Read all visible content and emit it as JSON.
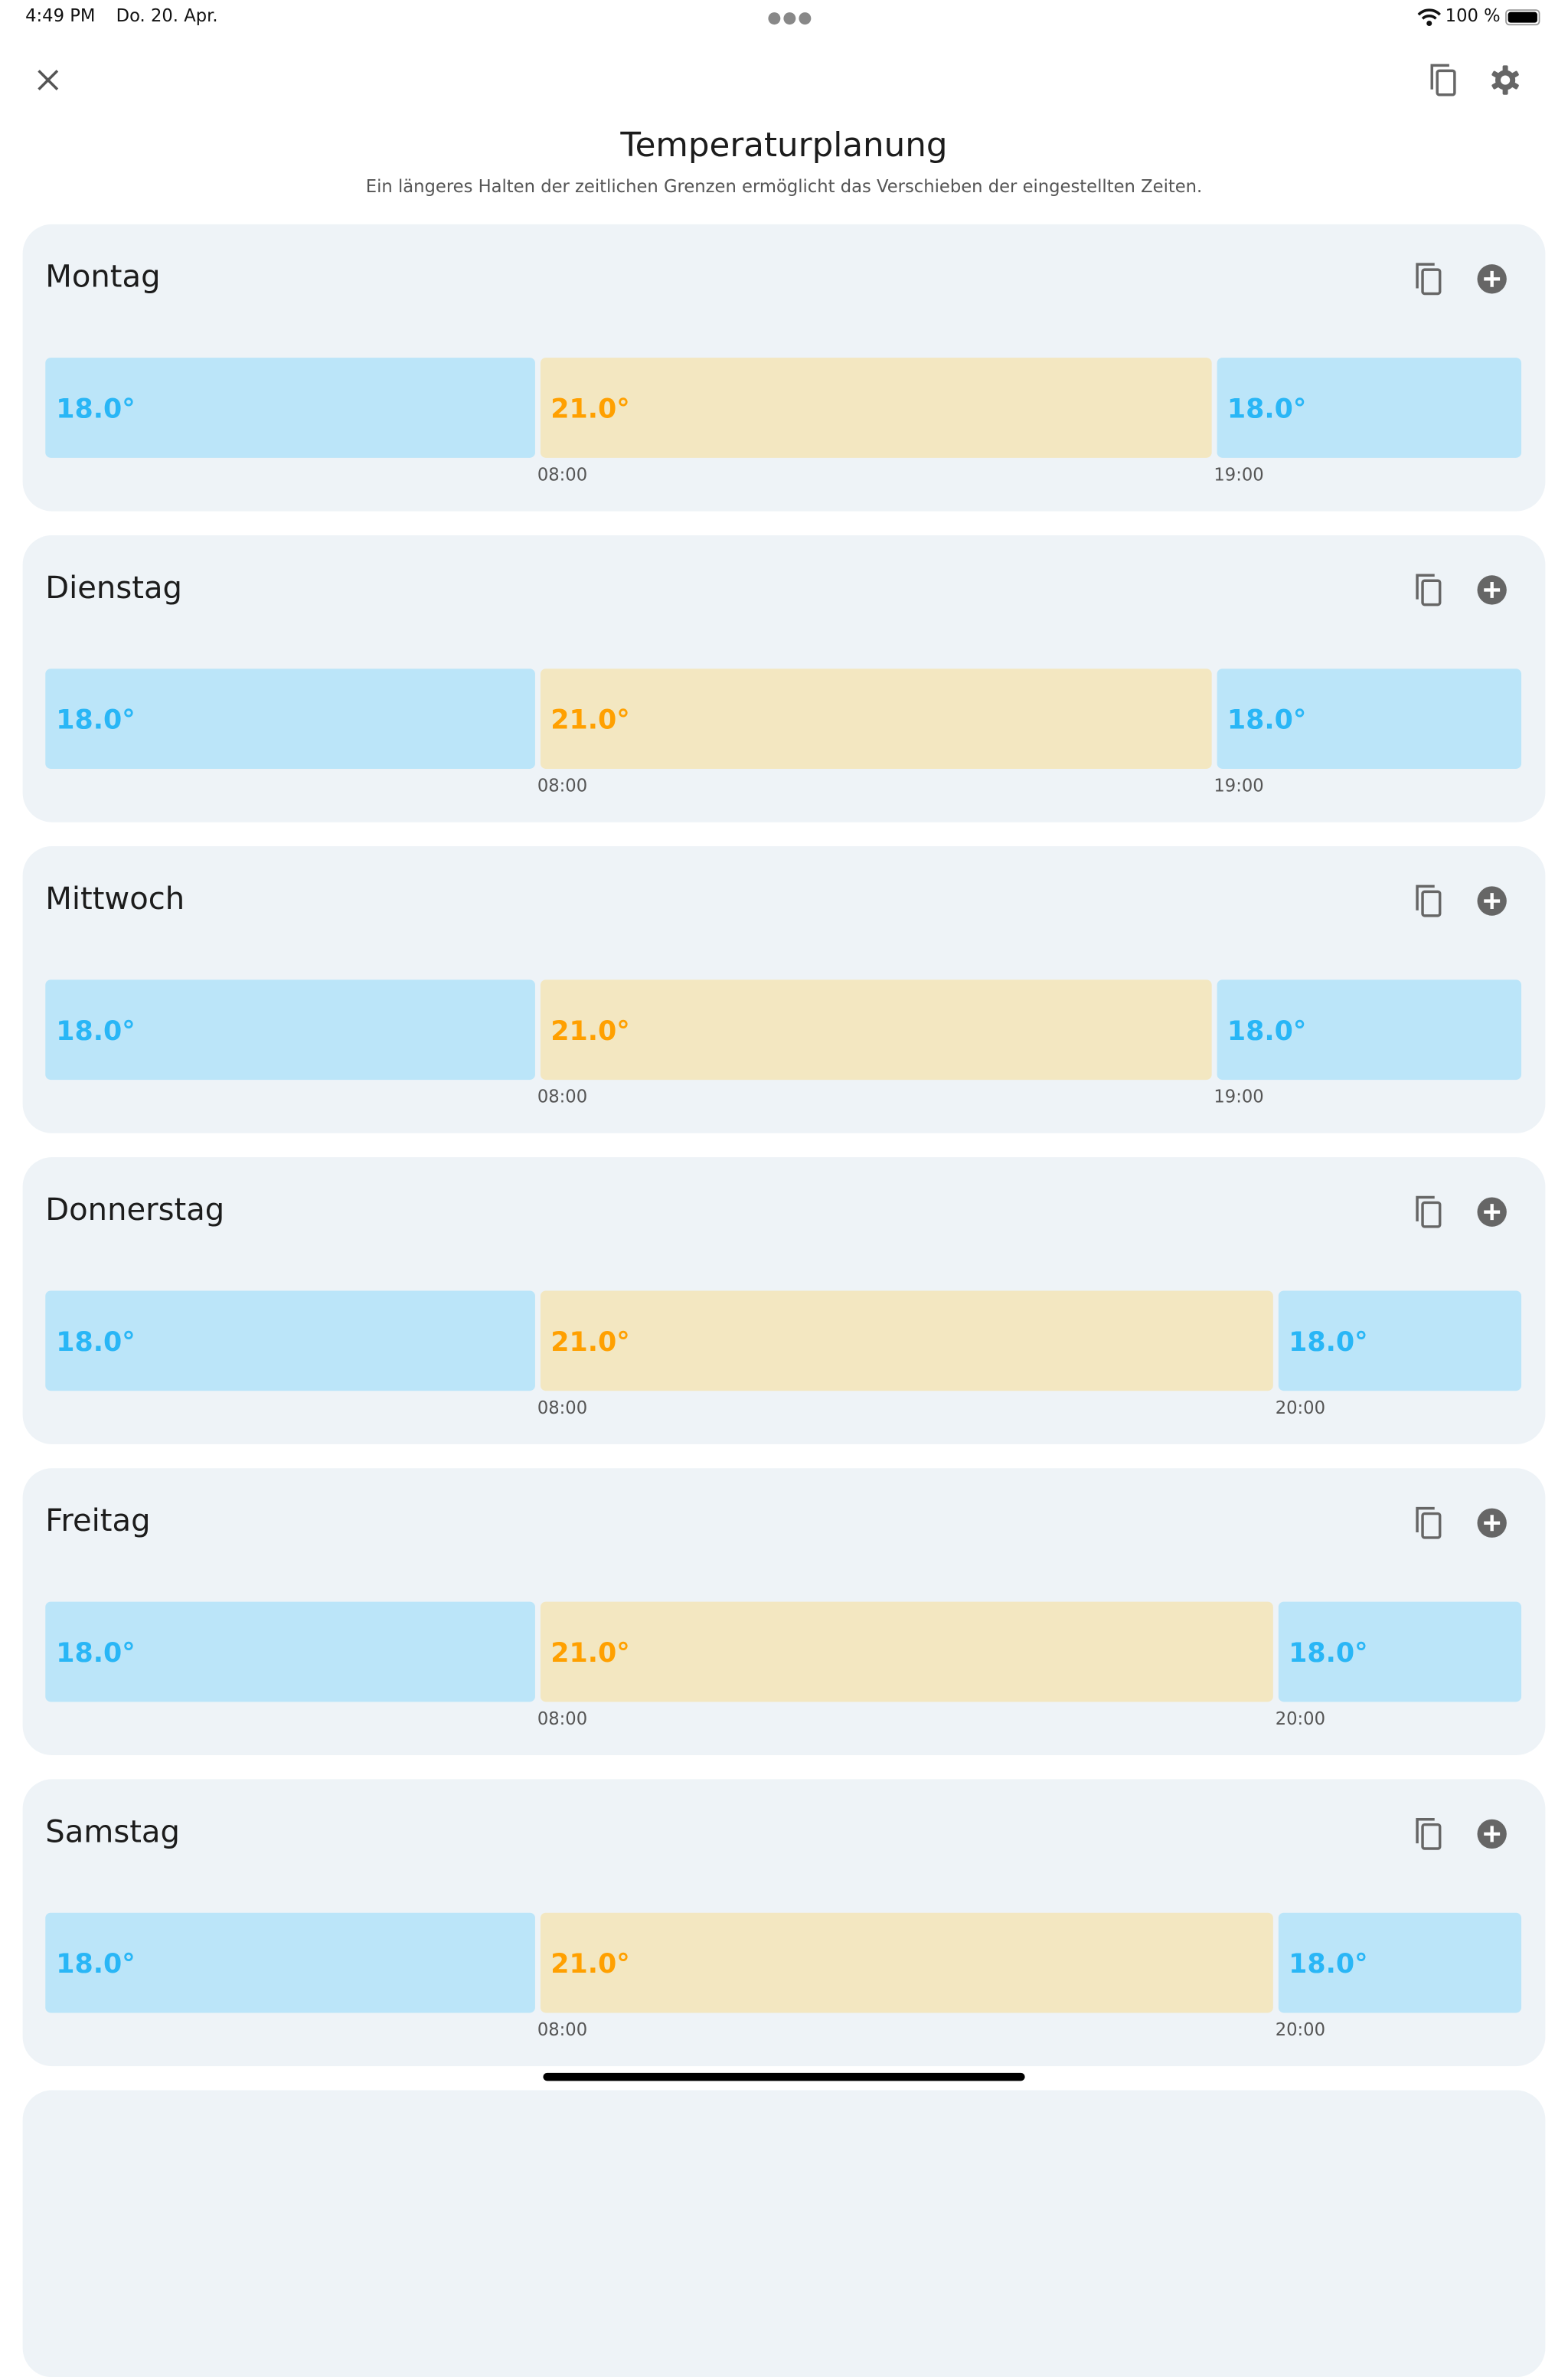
{
  "status_bar": {
    "time": "4:49 PM",
    "date": "Do. 20. Apr.",
    "battery": "100 %",
    "battery_level": 1.0
  },
  "header": {
    "title": "Temperaturplanung",
    "subtitle": "Ein längeres Halten der zeitlichen Grenzen ermöglicht das Verschieben der eingestellten Zeiten."
  },
  "colors": {
    "cold_bg": "#bbe5f9",
    "cold_text": "#29b6f6",
    "warm_bg": "#f3e7c1",
    "warm_text": "#ffa000",
    "card_bg": "#eef3f7",
    "icon": "#666666"
  },
  "days": [
    {
      "name": "Montag",
      "segments": [
        {
          "temp": "18.0°",
          "kind": "cold"
        },
        {
          "temp": "21.0°",
          "kind": "warm",
          "start": "08:00"
        },
        {
          "temp": "18.0°",
          "kind": "cold",
          "start": "19:00"
        }
      ]
    },
    {
      "name": "Dienstag",
      "segments": [
        {
          "temp": "18.0°",
          "kind": "cold"
        },
        {
          "temp": "21.0°",
          "kind": "warm",
          "start": "08:00"
        },
        {
          "temp": "18.0°",
          "kind": "cold",
          "start": "19:00"
        }
      ]
    },
    {
      "name": "Mittwoch",
      "segments": [
        {
          "temp": "18.0°",
          "kind": "cold"
        },
        {
          "temp": "21.0°",
          "kind": "warm",
          "start": "08:00"
        },
        {
          "temp": "18.0°",
          "kind": "cold",
          "start": "19:00"
        }
      ]
    },
    {
      "name": "Donnerstag",
      "segments": [
        {
          "temp": "18.0°",
          "kind": "cold"
        },
        {
          "temp": "21.0°",
          "kind": "warm",
          "start": "08:00"
        },
        {
          "temp": "18.0°",
          "kind": "cold",
          "start": "20:00"
        }
      ]
    },
    {
      "name": "Freitag",
      "segments": [
        {
          "temp": "18.0°",
          "kind": "cold"
        },
        {
          "temp": "21.0°",
          "kind": "warm",
          "start": "08:00"
        },
        {
          "temp": "18.0°",
          "kind": "cold",
          "start": "20:00"
        }
      ]
    },
    {
      "name": "Samstag",
      "segments": [
        {
          "temp": "18.0°",
          "kind": "cold"
        },
        {
          "temp": "21.0°",
          "kind": "warm",
          "start": "08:00"
        },
        {
          "temp": "18.0°",
          "kind": "cold",
          "start": "20:00"
        }
      ]
    }
  ]
}
